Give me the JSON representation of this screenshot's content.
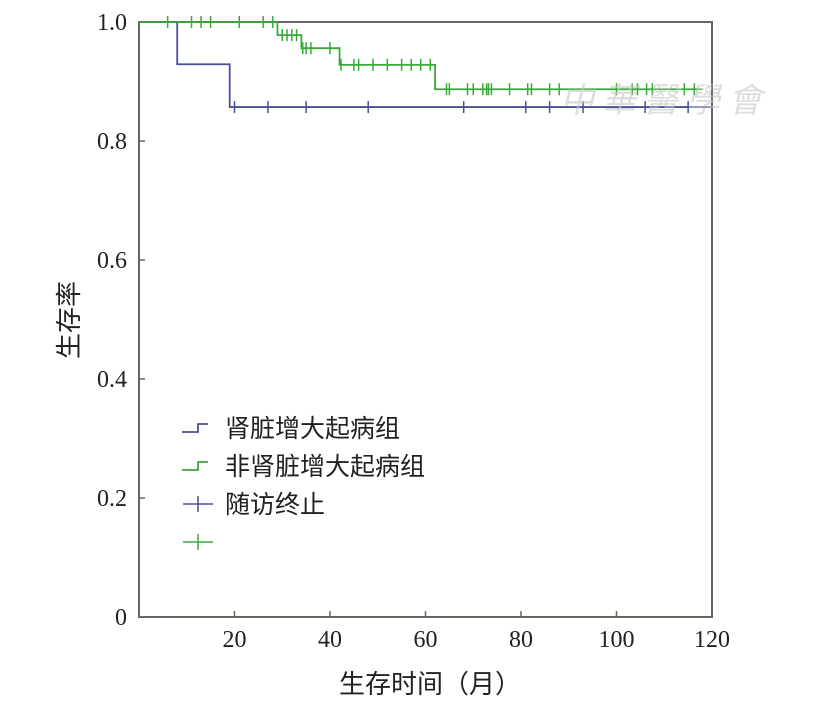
{
  "chart_data": {
    "type": "line",
    "subtype": "kaplan-meier",
    "xlabel": "生存时间（月）",
    "ylabel": "生存率",
    "xlim": [
      0,
      120
    ],
    "ylim": [
      0,
      1.0
    ],
    "xticks": [
      {
        "v": 20,
        "label": "20"
      },
      {
        "v": 40,
        "label": "40"
      },
      {
        "v": 60,
        "label": "60"
      },
      {
        "v": 80,
        "label": "80"
      },
      {
        "v": 100,
        "label": "100"
      },
      {
        "v": 120,
        "label": "120"
      }
    ],
    "yticks": [
      {
        "v": 0,
        "label": "0"
      },
      {
        "v": 0.2,
        "label": "0.2"
      },
      {
        "v": 0.4,
        "label": "0.4"
      },
      {
        "v": 0.6,
        "label": "0.6"
      },
      {
        "v": 0.8,
        "label": "0.8"
      },
      {
        "v": 1.0,
        "label": "1.0"
      }
    ],
    "legend_placement": "center-left",
    "series": [
      {
        "name": "肾脏增大起病组",
        "color": "#4a4f9a",
        "end": 120,
        "steps": [
          [
            0,
            1.0
          ],
          [
            8,
            0.929
          ],
          [
            19,
            0.857
          ]
        ],
        "censored": [
          20,
          27,
          35,
          48,
          68,
          81,
          86,
          93,
          106,
          115
        ]
      },
      {
        "name": "非肾脏增大起病组",
        "color": "#3aa83a",
        "end": 118,
        "steps": [
          [
            0,
            1.0
          ],
          [
            29,
            0.978
          ],
          [
            34,
            0.956
          ],
          [
            42,
            0.928
          ],
          [
            62,
            0.887
          ]
        ],
        "censored": [
          6,
          11,
          13,
          15,
          21,
          26,
          28,
          30,
          31,
          32,
          33,
          34.3,
          35,
          36,
          40,
          42.3,
          45,
          46,
          49,
          52,
          55,
          57,
          59,
          61,
          64.4,
          65,
          68.8,
          70,
          72,
          72.8,
          73.2,
          73.8,
          77.6,
          81.4,
          82.2,
          86,
          88,
          100,
          103.3,
          104.4,
          106.3,
          107.5,
          114.2,
          116.3
        ]
      }
    ],
    "legend": [
      {
        "label": "肾脏增大起病组",
        "kind": "line",
        "color": "#4a4f9a"
      },
      {
        "label": "非肾脏增大起病组",
        "kind": "line",
        "color": "#3aa83a"
      },
      {
        "label": "随访终止",
        "kind": "censor",
        "color": "#4a4f9a"
      },
      {
        "label": "",
        "kind": "censor",
        "color": "#3aa83a"
      }
    ]
  },
  "watermark": "中華醫學會"
}
